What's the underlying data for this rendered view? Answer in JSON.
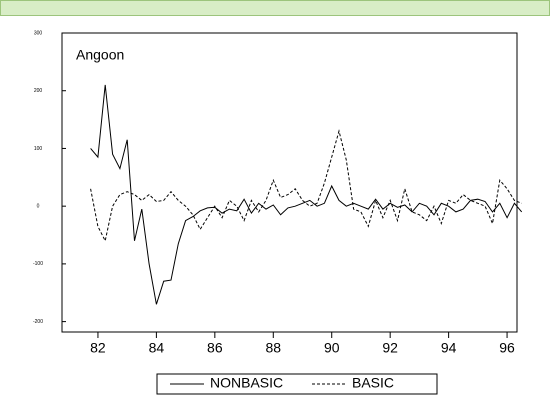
{
  "chart_data": {
    "type": "line",
    "annotation": "Angoon",
    "x": [
      81.75,
      82,
      82.25,
      82.5,
      82.75,
      83,
      83.25,
      83.5,
      83.75,
      84,
      84.25,
      84.5,
      84.75,
      85,
      85.25,
      85.5,
      85.75,
      86,
      86.25,
      86.5,
      86.75,
      87,
      87.25,
      87.5,
      87.75,
      88,
      88.25,
      88.5,
      88.75,
      89,
      89.25,
      89.5,
      89.75,
      90,
      90.25,
      90.5,
      90.75,
      91,
      91.25,
      91.5,
      91.75,
      92,
      92.25,
      92.5,
      92.75,
      93,
      93.25,
      93.5,
      93.75,
      94,
      94.25,
      94.5,
      94.75,
      95,
      95.25,
      95.5,
      95.75,
      96,
      96.25,
      96.5
    ],
    "series": [
      {
        "name": "NONBASIC",
        "color": "#000000",
        "dash": "solid",
        "values": [
          100,
          85,
          210,
          90,
          65,
          115,
          -60,
          -5,
          -100,
          -170,
          -130,
          -128,
          -65,
          -25,
          -18,
          -8,
          -3,
          -2,
          -12,
          -5,
          -8,
          12,
          -12,
          5,
          -5,
          2,
          -15,
          -3,
          0,
          5,
          10,
          0,
          5,
          35,
          10,
          0,
          5,
          0,
          -5,
          12,
          -5,
          5,
          -2,
          2,
          -10,
          5,
          0,
          -15,
          5,
          0,
          -10,
          -5,
          10,
          12,
          8,
          -10,
          5,
          -20,
          5,
          -10
        ]
      },
      {
        "name": "BASIC",
        "color": "#000000",
        "dash": "dashed",
        "values": [
          30,
          -35,
          -60,
          0,
          20,
          25,
          20,
          10,
          20,
          8,
          10,
          25,
          10,
          0,
          -15,
          -40,
          -20,
          0,
          -20,
          10,
          0,
          -25,
          10,
          -10,
          10,
          45,
          15,
          20,
          30,
          10,
          0,
          5,
          40,
          85,
          130,
          80,
          -5,
          -10,
          -35,
          10,
          -20,
          10,
          -25,
          30,
          -10,
          -15,
          -25,
          0,
          -30,
          10,
          5,
          20,
          10,
          5,
          0,
          -30,
          45,
          30,
          10,
          5
        ]
      }
    ],
    "xlim": [
      80.77,
      96.34
    ],
    "xticks": [
      82,
      84,
      86,
      88,
      90,
      92,
      94,
      96
    ],
    "ylim": [
      -218,
      300
    ],
    "yticks": [
      -200,
      -100,
      0,
      100,
      200,
      300
    ]
  }
}
